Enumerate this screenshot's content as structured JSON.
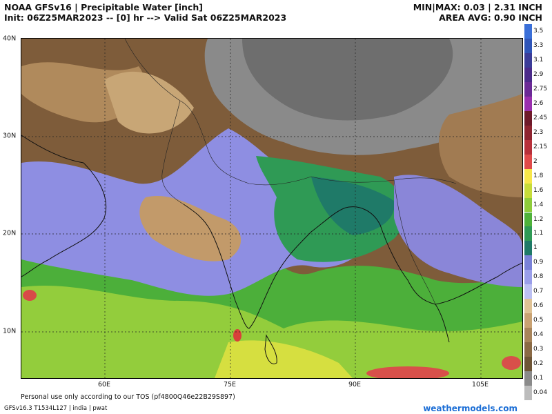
{
  "header": {
    "title": "NOAA GFSv16 | Precipitable Water [inch]",
    "init": "Init: 06Z25MAR2023 -- [0] hr --> Valid Sat 06Z25MAR2023",
    "minmax": "MIN|MAX: 0.03 | 2.31 INCH",
    "area_avg": "AREA AVG: 0.90 INCH"
  },
  "axes": {
    "lat_labels": [
      "40N",
      "30N",
      "20N",
      "10N"
    ],
    "lon_labels": [
      "60E",
      "75E",
      "90E",
      "105E"
    ]
  },
  "legend": {
    "entries": [
      {
        "label": "3.5",
        "color": "#3a6fd8"
      },
      {
        "label": "3.3",
        "color": "#2f55b8"
      },
      {
        "label": "3.1",
        "color": "#3b3c98"
      },
      {
        "label": "2.9",
        "color": "#4b2a8a"
      },
      {
        "label": "2.75",
        "color": "#6b2a96"
      },
      {
        "label": "2.6",
        "color": "#9a2fae"
      },
      {
        "label": "2.45",
        "color": "#6e1a2a"
      },
      {
        "label": "2.3",
        "color": "#8e2430"
      },
      {
        "label": "2.15",
        "color": "#b7303a"
      },
      {
        "label": "2",
        "color": "#e04a4a"
      },
      {
        "label": "1.8",
        "color": "#f7e64a"
      },
      {
        "label": "1.6",
        "color": "#c7dc3a"
      },
      {
        "label": "1.4",
        "color": "#8ecc3a"
      },
      {
        "label": "1.2",
        "color": "#4fb23a"
      },
      {
        "label": "1.1",
        "color": "#2f9a55"
      },
      {
        "label": "1",
        "color": "#1f7a68"
      },
      {
        "label": "0.9",
        "color": "#7a82d8"
      },
      {
        "label": "0.8",
        "color": "#9a9eea"
      },
      {
        "label": "0.7",
        "color": "#bcc0f2"
      },
      {
        "label": "0.6",
        "color": "#dfc295"
      },
      {
        "label": "0.5",
        "color": "#c9a273"
      },
      {
        "label": "0.4",
        "color": "#a8845a"
      },
      {
        "label": "0.3",
        "color": "#8a6a45"
      },
      {
        "label": "0.2",
        "color": "#6e5536"
      },
      {
        "label": "0.1",
        "color": "#8a8a8a"
      },
      {
        "label": "0.04",
        "color": "#bcbcbc"
      }
    ]
  },
  "footer": {
    "tos": "Personal use only according to our TOS (pf4800Q46e22B29S897)",
    "model_info": "GFSv16.3 T1534L127 | india | pwat",
    "brand": "weathermodels.com"
  }
}
